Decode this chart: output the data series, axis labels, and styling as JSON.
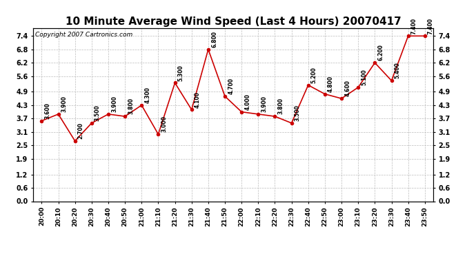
{
  "title": "10 Minute Average Wind Speed (Last 4 Hours) 20070417",
  "copyright": "Copyright 2007 Cartronics.com",
  "x_labels": [
    "20:00",
    "20:10",
    "20:20",
    "20:30",
    "20:40",
    "20:50",
    "21:00",
    "21:10",
    "21:20",
    "21:30",
    "21:40",
    "21:50",
    "22:00",
    "22:10",
    "22:20",
    "22:30",
    "22:40",
    "22:50",
    "23:00",
    "23:10",
    "23:20",
    "23:30",
    "23:40",
    "23:50"
  ],
  "y_values": [
    3.6,
    3.9,
    2.7,
    3.5,
    3.9,
    3.8,
    4.3,
    3.0,
    5.3,
    4.1,
    6.8,
    4.7,
    4.0,
    3.9,
    3.8,
    3.5,
    5.2,
    4.8,
    4.6,
    5.1,
    6.2,
    5.4,
    7.4,
    7.4
  ],
  "line_color": "#cc0000",
  "marker_color": "#cc0000",
  "bg_color": "#ffffff",
  "grid_color": "#bbbbbb",
  "ylim_min": 0.0,
  "ylim_max": 7.74,
  "yticks": [
    0.0,
    0.6,
    1.2,
    1.9,
    2.5,
    3.1,
    3.7,
    4.3,
    4.9,
    5.6,
    6.2,
    6.8,
    7.4
  ],
  "title_fontsize": 11,
  "annotation_fontsize": 5.5,
  "copyright_fontsize": 6.5,
  "tick_fontsize": 6.5,
  "ytick_fontsize": 7
}
